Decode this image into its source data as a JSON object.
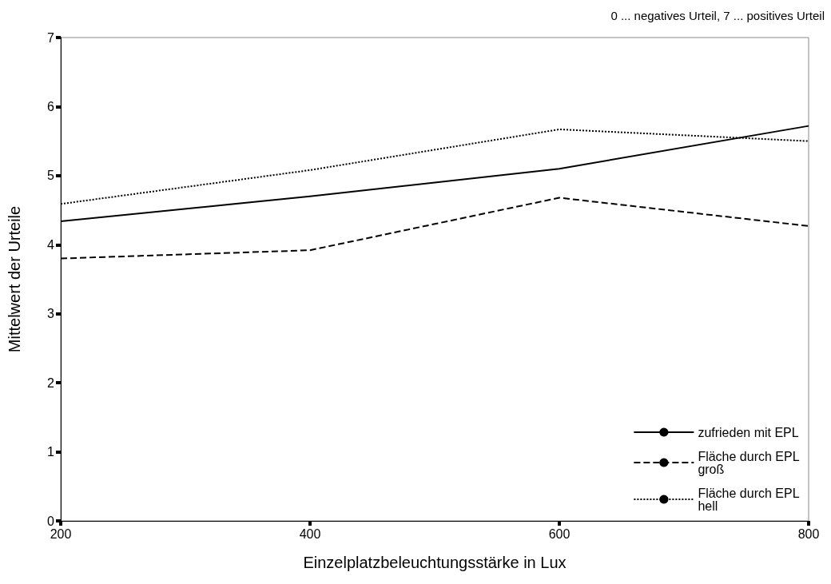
{
  "chart_data": {
    "type": "line",
    "xlabel": "Einzelplatzbeleuchtungsstärke in Lux",
    "ylabel": "Mittelwert der Urteile",
    "annotations": [
      "0 ... negatives Urteil, 7 ... positives Urteil"
    ],
    "x": [
      200,
      400,
      600,
      800
    ],
    "series": [
      {
        "name": "zufrieden mit EPL",
        "color": "#000000",
        "line_style": "solid",
        "values": [
          4.34,
          4.7,
          5.1,
          5.72
        ]
      },
      {
        "name": "Fläche durch EPL groß",
        "color": "#000000",
        "line_style": "dashed",
        "values": [
          3.8,
          3.92,
          4.68,
          4.27
        ]
      },
      {
        "name": "Fläche durch EPL hell",
        "color": "#000000",
        "line_style": "dotted",
        "values": [
          4.59,
          5.08,
          5.67,
          5.5
        ]
      }
    ],
    "xlim": [
      200,
      800
    ],
    "xticks": [
      200,
      400,
      600,
      800
    ],
    "ylim": [
      0,
      7
    ],
    "yticks": [
      0,
      1,
      2,
      3,
      4,
      5,
      6,
      7
    ],
    "grid": false,
    "legend": "bottom right",
    "marker": "none"
  }
}
